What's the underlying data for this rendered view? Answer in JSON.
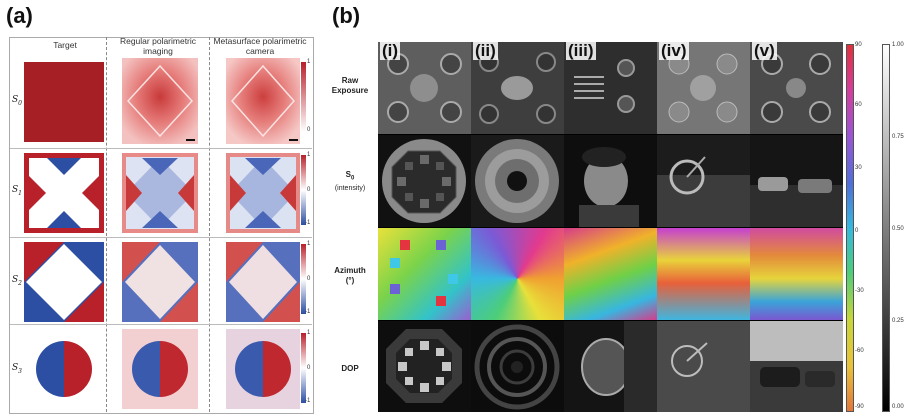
{
  "panel_a": {
    "letter": "(a)",
    "headers": {
      "target": "Target",
      "regular": "Regular polarimetric imaging",
      "meta": "Metasurface polarimetric camera"
    },
    "rows": [
      {
        "s": "S",
        "sub": "0"
      },
      {
        "s": "S",
        "sub": "1"
      },
      {
        "s": "S",
        "sub": "2"
      },
      {
        "s": "S",
        "sub": "3"
      }
    ],
    "colorbars": [
      {
        "top": "1",
        "bottom": "0"
      },
      {
        "top": "1",
        "mid": "0",
        "bottom": "-1"
      },
      {
        "top": "1",
        "mid": "0",
        "bottom": "-1"
      },
      {
        "top": "1",
        "mid": "0",
        "bottom": "-1"
      }
    ],
    "colors": {
      "red": "#b8202a",
      "blue": "#2d4fa3",
      "white": "#ffffff"
    }
  },
  "panel_b": {
    "letter": "(b)",
    "columns": [
      "(i)",
      "(ii)",
      "(iii)",
      "(iv)",
      "(v)"
    ],
    "row_labels": [
      {
        "line1": "Raw",
        "line2": "Exposure"
      },
      {
        "line1": "S",
        "sub": "0",
        "line2": "(intensity)"
      },
      {
        "line1": "Azimuth",
        "line2": "(°)"
      },
      {
        "line1": "DOP",
        "line2": ""
      }
    ],
    "hue_bar_ticks": [
      "90",
      "60",
      "30",
      "0",
      "-30",
      "-60",
      "-90"
    ],
    "gray_bar_ticks": [
      "1.00",
      "0.75",
      "0.50",
      "0.25",
      "0.00"
    ]
  }
}
